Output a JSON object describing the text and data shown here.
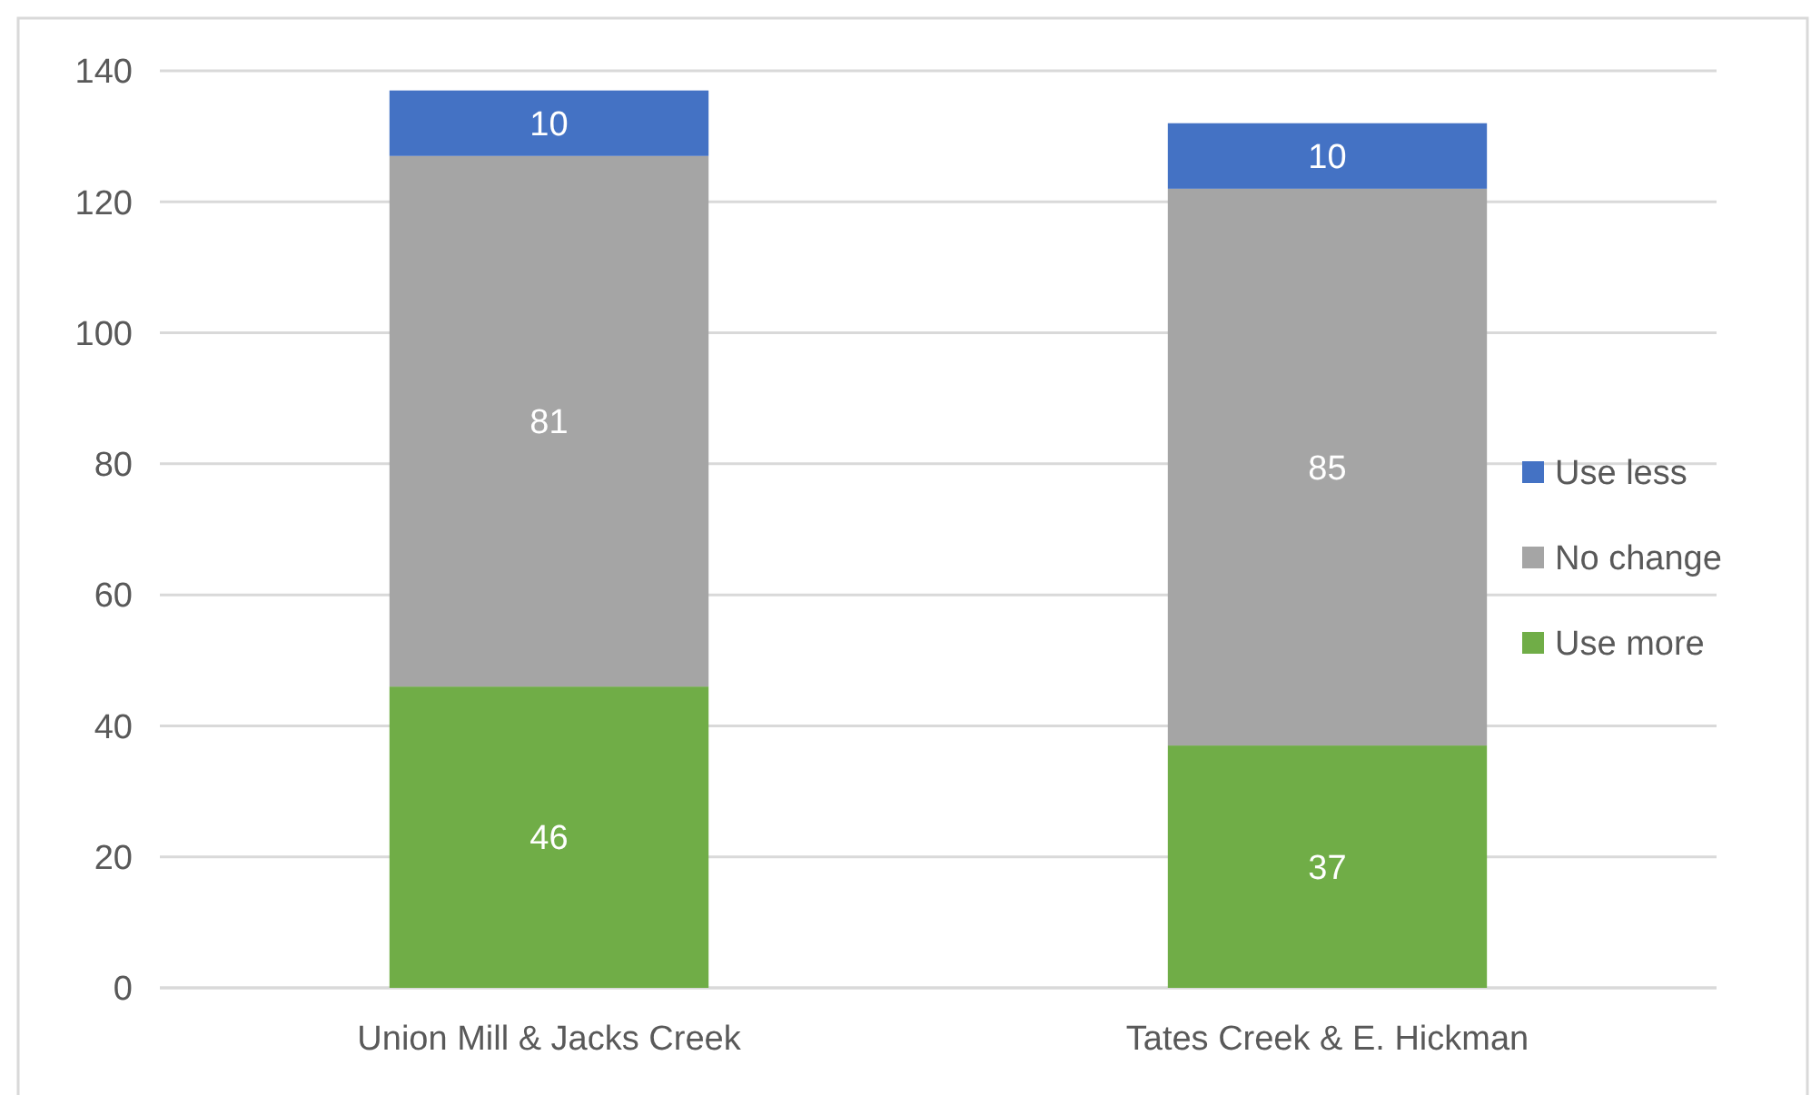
{
  "chart_data": {
    "type": "bar",
    "stacked": true,
    "categories": [
      "Union Mill & Jacks Creek",
      "Tates Creek & E. Hickman"
    ],
    "series": [
      {
        "name": "Use more",
        "color": "#70ad47",
        "values": [
          46,
          37
        ]
      },
      {
        "name": "No change",
        "color": "#a5a5a5",
        "values": [
          81,
          85
        ]
      },
      {
        "name": "Use less",
        "color": "#4472c4",
        "values": [
          10,
          10
        ]
      }
    ],
    "ylim": [
      0,
      140
    ],
    "yticks": [
      0,
      20,
      40,
      60,
      80,
      100,
      120,
      140
    ],
    "grid": "y",
    "legend": "right",
    "data_labels": true
  }
}
